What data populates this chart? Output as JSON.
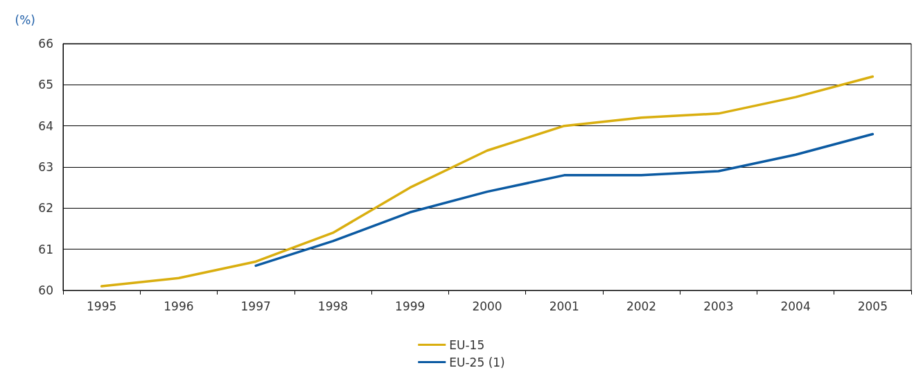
{
  "chart_data": {
    "type": "line",
    "ylabel": "(%)",
    "categories": [
      "1995",
      "1996",
      "1997",
      "1998",
      "1999",
      "2000",
      "2001",
      "2002",
      "2003",
      "2004",
      "2005"
    ],
    "series": [
      {
        "name": "EU-15",
        "color": "#d9ae0f",
        "values": [
          60.1,
          60.3,
          60.7,
          61.4,
          62.5,
          63.4,
          64.0,
          64.2,
          64.3,
          64.7,
          65.2
        ]
      },
      {
        "name": "EU-25 (1)",
        "color": "#0b5aa2",
        "values": [
          null,
          null,
          60.6,
          61.2,
          61.9,
          62.4,
          62.8,
          62.8,
          62.9,
          63.3,
          63.8
        ]
      }
    ],
    "ylim": [
      60,
      66
    ],
    "yticks": [
      60,
      61,
      62,
      63,
      64,
      65,
      66
    ],
    "grid": "y",
    "legend": "bottom",
    "marker": "none",
    "line_style": "solid"
  }
}
